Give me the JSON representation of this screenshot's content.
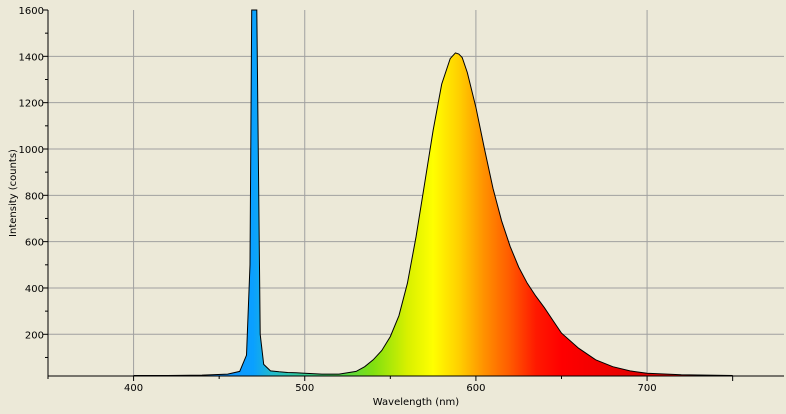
{
  "chart_data": {
    "type": "area",
    "title": "",
    "xlabel": "Wavelength (nm)",
    "ylabel": "Intensity (counts)",
    "xlim": [
      350,
      780
    ],
    "ylim": [
      20,
      1600
    ],
    "x_ticks": [
      400,
      500,
      600,
      700
    ],
    "y_ticks": [
      200,
      400,
      600,
      800,
      1000,
      1200,
      1400,
      1600
    ],
    "grid": true,
    "background_color": "#ece9d8",
    "grid_color": "#a0a0a0",
    "outline_color": "#000000",
    "fill": "visible-spectrum gradient (violet/blue through green, yellow, orange, red)",
    "series": [
      {
        "x": [
          400,
          420,
          440,
          455,
          462,
          466,
          468,
          469,
          470,
          471,
          472,
          473,
          474,
          476,
          480,
          485,
          490,
          495,
          500,
          510,
          520,
          530,
          535,
          540,
          545,
          550,
          555,
          560,
          565,
          570,
          575,
          580,
          585,
          588,
          590,
          592,
          595,
          600,
          605,
          610,
          615,
          620,
          625,
          630,
          635,
          640,
          645,
          650,
          660,
          670,
          680,
          690,
          700,
          720,
          750
        ],
        "y": [
          22,
          22,
          24,
          28,
          40,
          110,
          500,
          1600,
          1600,
          1600,
          1600,
          900,
          200,
          70,
          42,
          38,
          35,
          34,
          32,
          28,
          28,
          40,
          60,
          90,
          130,
          190,
          280,
          420,
          620,
          850,
          1080,
          1280,
          1390,
          1415,
          1410,
          1395,
          1330,
          1180,
          1000,
          830,
          690,
          580,
          490,
          420,
          365,
          315,
          260,
          205,
          140,
          90,
          60,
          42,
          32,
          25,
          22
        ]
      }
    ]
  }
}
